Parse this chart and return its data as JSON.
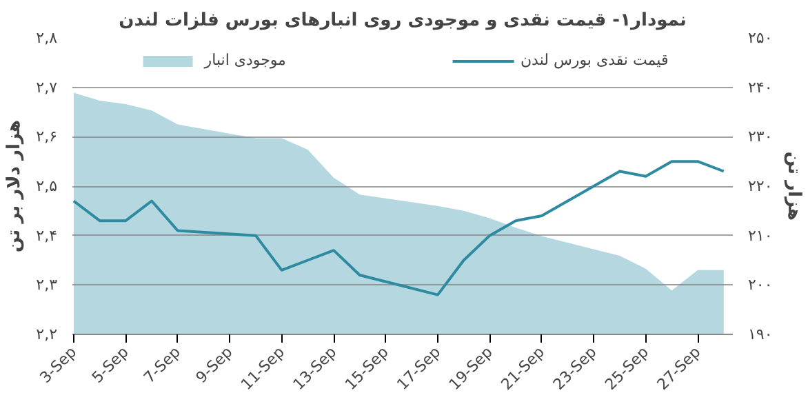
{
  "chart_data": {
    "type": "line",
    "title": "نمودار۱- قیمت نقدی و موجودی روی انبارهای بورس فلزات لندن",
    "ylabel": "هزار دلار بر تن",
    "y2label": "هزار تن",
    "categories": [
      "3-Sep",
      null,
      "5-Sep",
      null,
      "7-Sep",
      null,
      "9-Sep",
      null,
      "11-Sep",
      null,
      "13-Sep",
      null,
      "15-Sep",
      null,
      "17-Sep",
      null,
      "19-Sep",
      null,
      "21-Sep",
      null,
      "23-Sep",
      null,
      "25-Sep",
      null,
      "27-Sep",
      null
    ],
    "series": [
      {
        "name": "موجودی انبار",
        "type": "area",
        "axis": "y2",
        "color": "#b5d8e0",
        "values": [
          238.9,
          237.3,
          236.6,
          235.3,
          232.5,
          null,
          null,
          229.7,
          229.7,
          227.4,
          221.7,
          218.3,
          null,
          null,
          216,
          215,
          213.5,
          211.6,
          209.9,
          null,
          null,
          205.9,
          203.3,
          198.9,
          203,
          203
        ]
      },
      {
        "name": "قیمت نقدی بورس لندن",
        "color": "#2e8aa0",
        "values": [
          2.47,
          2.43,
          2.43,
          2.47,
          2.41,
          null,
          null,
          2.4,
          2.33,
          2.35,
          2.37,
          2.32,
          null,
          null,
          2.28,
          2.35,
          2.4,
          2.43,
          2.44,
          null,
          null,
          2.53,
          2.52,
          2.55,
          2.55,
          2.53
        ]
      }
    ],
    "ylim": [
      2.2,
      2.8
    ],
    "yticks": [
      {
        "value": 2.2,
        "label": "۲,۲"
      },
      {
        "value": 2.3,
        "label": "۲,۳"
      },
      {
        "value": 2.4,
        "label": "۲,۴"
      },
      {
        "value": 2.5,
        "label": "۲,۵"
      },
      {
        "value": 2.6,
        "label": "۲,۶"
      },
      {
        "value": 2.7,
        "label": "۲,۷"
      },
      {
        "value": 2.8,
        "label": "۲,۸"
      }
    ],
    "y2lim": [
      190,
      250
    ],
    "y2ticks": [
      {
        "value": 190,
        "label": "۱۹۰"
      },
      {
        "value": 200,
        "label": "۲۰۰"
      },
      {
        "value": 210,
        "label": "۲۱۰"
      },
      {
        "value": 220,
        "label": "۲۲۰"
      },
      {
        "value": 230,
        "label": "۲۳۰"
      },
      {
        "value": 240,
        "label": "۲۴۰"
      },
      {
        "value": 250,
        "label": "۲۵۰"
      }
    ],
    "grid": "y",
    "legend": "top",
    "marker": "none",
    "line_style": "solid"
  }
}
